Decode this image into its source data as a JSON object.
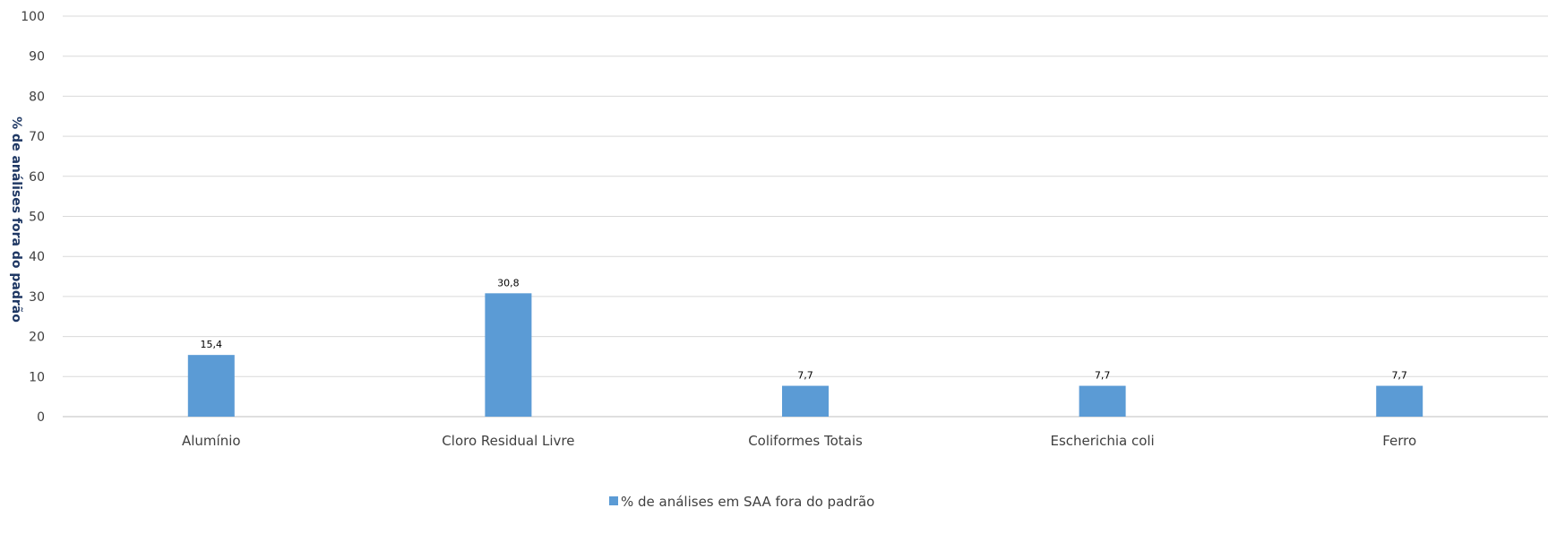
{
  "chart_data": {
    "type": "bar",
    "categories": [
      "Alumínio",
      "Cloro Residual Livre",
      "Coliformes Totais",
      "Escherichia coli",
      "Ferro"
    ],
    "series": [
      {
        "name": "% de análises em SAA fora do padrão",
        "values": [
          15.4,
          30.8,
          7.7,
          7.7,
          7.7
        ],
        "data_labels": [
          "15,4",
          "30,8",
          "7,7",
          "7,7",
          "7,7"
        ],
        "color": "#5b9bd5"
      }
    ],
    "ylabel": "% de análises fora do padrão",
    "ylim": [
      0,
      100
    ],
    "yticks": [
      0,
      10,
      20,
      30,
      40,
      50,
      60,
      70,
      80,
      90,
      100
    ],
    "grid": true,
    "legend_position": "bottom"
  },
  "colors": {
    "bar": "#5b9bd5",
    "grid": "#d9d9d9",
    "axis": "#bfbfbf",
    "text": "#404040",
    "axis_title": "#1f3864"
  }
}
